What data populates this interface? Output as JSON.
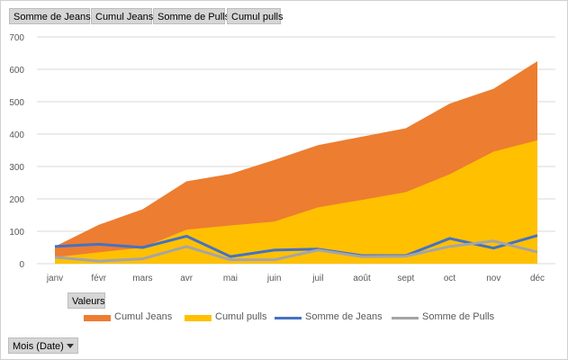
{
  "field_buttons": {
    "somme_jeans": "Somme  de Jeans",
    "cumul_jeans": "Cumul Jeans",
    "somme_pulls": "Somme  de Pulls",
    "cumul_pulls": "Cumul pulls",
    "valeurs": "Valeurs",
    "mois": "Mois (Date)"
  },
  "colors": {
    "cumul_jeans": "#ED7D31",
    "cumul_pulls": "#FFC000",
    "somme_jeans": "#4472C4",
    "somme_pulls": "#A5A5A5",
    "gridline": "#D9D9D9"
  },
  "legend": {
    "cumul_jeans": "Cumul Jeans",
    "cumul_pulls": "Cumul pulls",
    "somme_jeans": "Somme de Jeans",
    "somme_pulls": "Somme de Pulls"
  },
  "chart_data": {
    "type": "area",
    "categories": [
      "janv",
      "févr",
      "mars",
      "avr",
      "mai",
      "juin",
      "juil",
      "août",
      "sept",
      "oct",
      "nov",
      "déc"
    ],
    "ylim": [
      0,
      700
    ],
    "yticks": [
      0,
      100,
      200,
      300,
      400,
      500,
      600,
      700
    ],
    "grid": true,
    "legend_position": "bottom",
    "series": [
      {
        "name": "Cumul Jeans",
        "kind": "area",
        "values": [
          53,
          120,
          168,
          254,
          277,
          320,
          366,
          392,
          418,
          494,
          540,
          625
        ]
      },
      {
        "name": "Cumul pulls",
        "kind": "area",
        "values": [
          20,
          35,
          50,
          105,
          118,
          130,
          174,
          197,
          221,
          276,
          346,
          381
        ]
      },
      {
        "name": "Somme de Jeans",
        "kind": "line",
        "values": [
          53,
          60,
          50,
          85,
          22,
          42,
          45,
          25,
          25,
          78,
          48,
          87
        ]
      },
      {
        "name": "Somme de Pulls",
        "kind": "line",
        "values": [
          20,
          8,
          15,
          53,
          12,
          12,
          42,
          22,
          23,
          53,
          70,
          36
        ]
      }
    ]
  }
}
